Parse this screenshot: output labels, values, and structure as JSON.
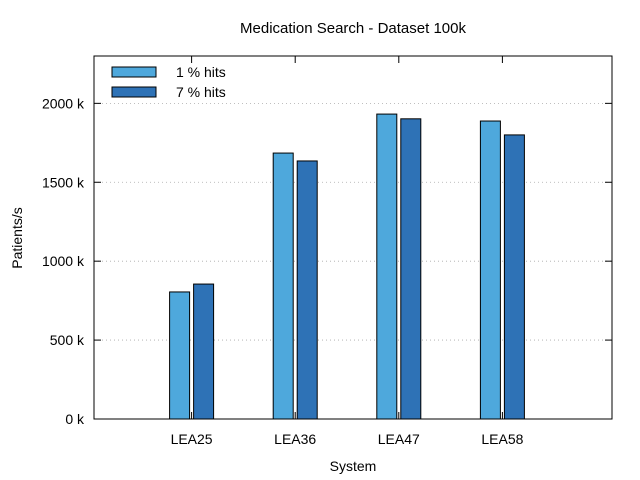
{
  "chart_data": {
    "type": "bar",
    "title": "Medication Search - Dataset 100k",
    "xlabel": "System",
    "ylabel": "Patients/s",
    "categories": [
      "LEA25",
      "LEA36",
      "LEA47",
      "LEA58"
    ],
    "series": [
      {
        "name": "1 % hits",
        "color": "#4ea8dc",
        "values": [
          805,
          1685,
          1932,
          1888
        ]
      },
      {
        "name": "7 % hits",
        "color": "#2e72b6",
        "values": [
          855,
          1635,
          1902,
          1800
        ]
      }
    ],
    "ylim": [
      0,
      2300
    ],
    "yticks": [
      0,
      500,
      1000,
      1500,
      2000
    ],
    "ytick_labels": [
      "0 k",
      "500 k",
      "1000 k",
      "1500 k",
      "2000 k"
    ],
    "grid": "horizontal-dotted",
    "legend_position": "top-left"
  }
}
